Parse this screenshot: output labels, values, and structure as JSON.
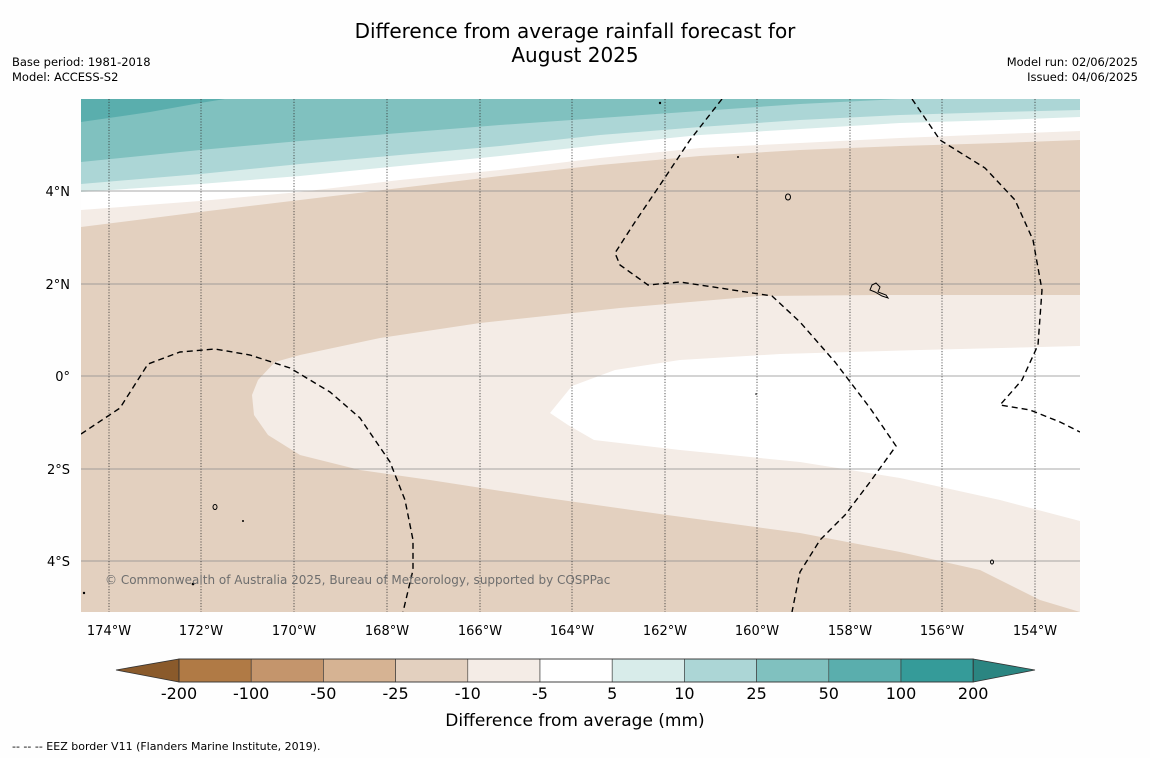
{
  "title_line1": "Difference from average rainfall forecast for",
  "title_line2": "August 2025",
  "base_period": "Base period: 1981-2018",
  "model": "Model: ACCESS-S2",
  "model_run": "Model run: 02/06/2025",
  "issued": "Issued: 04/06/2025",
  "lat_labels": [
    "4°N",
    "2°N",
    "0°",
    "2°S",
    "4°S"
  ],
  "lon_labels": [
    "174°W",
    "172°W",
    "170°W",
    "168°W",
    "166°W",
    "164°W",
    "162°W",
    "160°W",
    "158°W",
    "156°W",
    "154°W"
  ],
  "colorbar": {
    "ticks": [
      "-200",
      "-100",
      "-50",
      "-25",
      "-10",
      "-5",
      "5",
      "10",
      "25",
      "50",
      "100",
      "200"
    ],
    "colors": [
      "#8a5a2b",
      "#b07a45",
      "#c4956c",
      "#d6b393",
      "#e3d0bf",
      "#f4ece6",
      "#ffffff",
      "#d8ecea",
      "#acd6d6",
      "#80c1bf",
      "#5aaead",
      "#359b99",
      "#2b8581"
    ],
    "title": "Difference from average (mm)"
  },
  "copyright": "© Commonwealth of Australia 2025, Bureau of Meteorology, supported by COSPPac",
  "footnote": "-- -- -- EEZ border V11 (Flanders Marine Institute, 2019)."
}
